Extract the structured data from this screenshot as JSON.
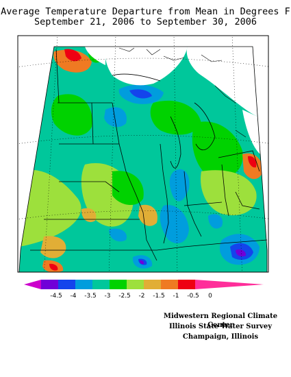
{
  "title": {
    "line1": "Average Temperature Departure from Mean in Degrees F",
    "line2": "September 21, 2006 to September 30, 2006"
  },
  "legend": {
    "ticks": [
      "-4.5",
      "-4",
      "-3.5",
      "-3",
      "-2.5",
      "-2",
      "-1.5",
      "-1",
      "-0.5",
      "0"
    ],
    "colors": [
      "#cc00cc",
      "#7000d8",
      "#1444ec",
      "#009ddd",
      "#00c79b",
      "#00d200",
      "#9de03c",
      "#e1ae36",
      "#ef7a22",
      "#ee0012",
      "#ff2e9a"
    ]
  },
  "credits": {
    "line1": "Midwestern Regional Climate Center",
    "line2": "Illinois State Water Survey",
    "line3": "Champaign, Illinois"
  }
}
